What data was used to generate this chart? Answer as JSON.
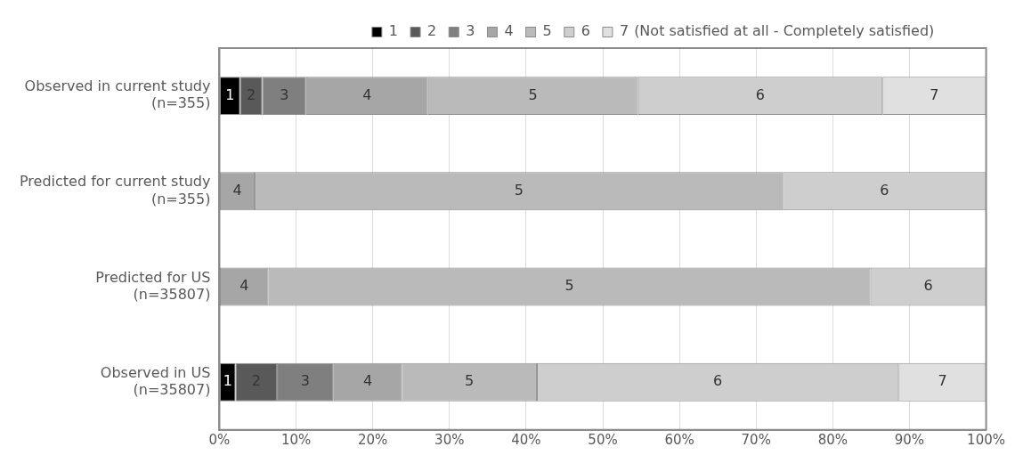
{
  "chart_data": {
    "type": "bar",
    "orientation": "horizontal",
    "stacked": true,
    "categories": [
      "Observed in current study\n(n=355)",
      "Predicted for current study\n(n=355)",
      "Predicted for US\n(n=35807)",
      "Observed in US\n(n=35807)"
    ],
    "series": [
      {
        "name": "1",
        "color": "#000000",
        "values": [
          2.7,
          null,
          null,
          2.1
        ]
      },
      {
        "name": "2",
        "color": "#595959",
        "values": [
          2.9,
          null,
          null,
          5.4
        ]
      },
      {
        "name": "3",
        "color": "#7f7f7f",
        "values": [
          5.7,
          null,
          null,
          7.4
        ]
      },
      {
        "name": "4",
        "color": "#a6a6a6",
        "values": [
          15.9,
          4.6,
          6.4,
          8.9
        ]
      },
      {
        "name": "5",
        "color": "#bababa",
        "values": [
          27.4,
          68.9,
          78.5,
          17.6
        ]
      },
      {
        "name": "6",
        "color": "#cecece",
        "values": [
          31.9,
          26.5,
          15.1,
          47.2
        ]
      },
      {
        "name": "7",
        "color": "#e0e0e0",
        "values": [
          13.5,
          null,
          null,
          11.4
        ]
      }
    ],
    "annotations": [
      "(Not satisfied at all - Completely satisfied)"
    ],
    "xlim": [
      0,
      100
    ],
    "xticks": [
      {
        "value": 0,
        "label": "0%"
      },
      {
        "value": 10,
        "label": "10%"
      },
      {
        "value": 20,
        "label": "20%"
      },
      {
        "value": 30,
        "label": "30%"
      },
      {
        "value": 40,
        "label": "40%"
      },
      {
        "value": 50,
        "label": "50%"
      },
      {
        "value": 60,
        "label": "60%"
      },
      {
        "value": 70,
        "label": "70%"
      },
      {
        "value": 80,
        "label": "80%"
      },
      {
        "value": 90,
        "label": "90%"
      },
      {
        "value": 100,
        "label": "100%"
      }
    ],
    "grid": "x",
    "legend": "top"
  }
}
